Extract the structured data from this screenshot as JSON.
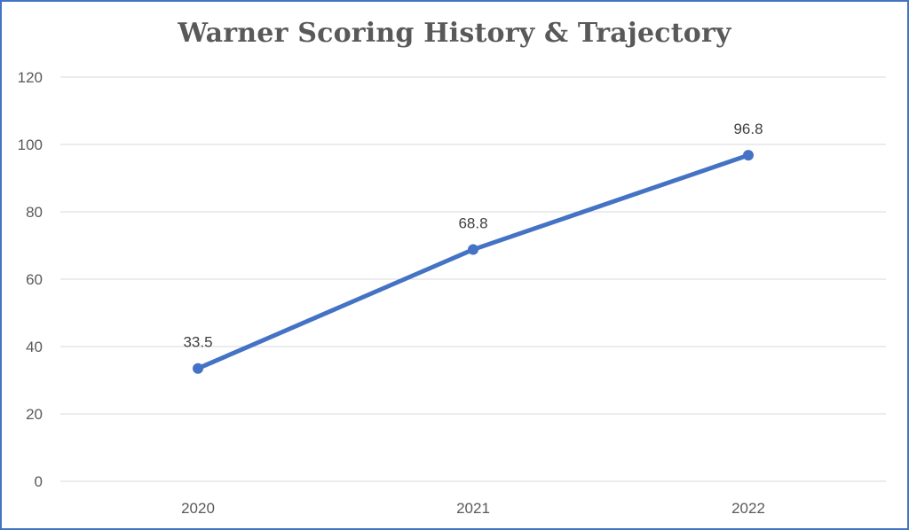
{
  "chart_data": {
    "type": "line",
    "title": "Warner Scoring History & Trajectory",
    "xlabel": "",
    "ylabel": "",
    "categories": [
      "2020",
      "2021",
      "2022"
    ],
    "series": [
      {
        "values": [
          33.5,
          68.8,
          96.8
        ],
        "color": "#4472c4"
      }
    ],
    "data_labels": [
      "33.5",
      "68.8",
      "96.8"
    ],
    "ylim": [
      0,
      120
    ],
    "yticks": [
      "0",
      "20",
      "40",
      "60",
      "80",
      "100",
      "120"
    ],
    "grid": "horizontal",
    "gridline_color": "#d9d9d9",
    "border_color": "#4472c4",
    "legend": "none"
  }
}
